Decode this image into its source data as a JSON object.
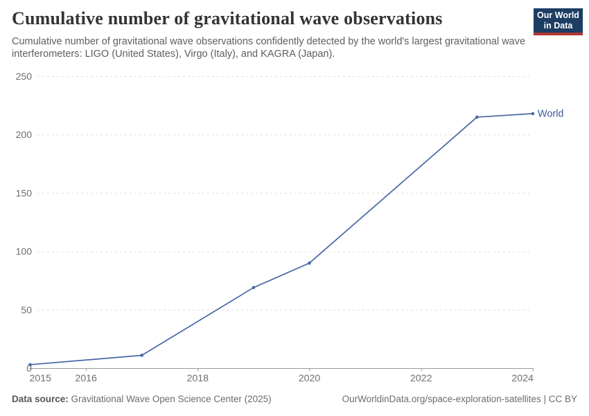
{
  "chart_data": {
    "type": "line",
    "title": "Cumulative number of gravitational wave observations",
    "subtitle": "Cumulative number of gravitational wave observations confidently detected by the world's largest gravitational wave interferometers: LIGO (United States), Virgo (Italy), and KAGRA (Japan).",
    "series": [
      {
        "name": "World",
        "x": [
          2015,
          2017,
          2019,
          2020,
          2023,
          2024
        ],
        "values": [
          3,
          11,
          69,
          90,
          215,
          218
        ]
      }
    ],
    "x_ticks": [
      2015,
      2016,
      2018,
      2020,
      2022,
      2024
    ],
    "x_tick_labels": [
      "2015",
      "2016",
      "2018",
      "2020",
      "2022",
      "2024"
    ],
    "y_ticks": [
      0,
      50,
      100,
      150,
      200,
      250
    ],
    "xlim": [
      2015,
      2024
    ],
    "ylim": [
      0,
      250
    ],
    "grid": "horizontal-dashed",
    "legend_position": "end-of-line-label",
    "end_label": "World",
    "xlabel": "",
    "ylabel": ""
  },
  "theme": {
    "line_color": "#4766a5",
    "marker_color": "#4766a5",
    "end_label_color": "#3d5a9b",
    "axis_label_color": "#6e6e6e",
    "grid_color": "#dedede",
    "axis_color": "#9a9a9a",
    "title_color": "#333333",
    "subtitle_color": "#5e5e5e",
    "footer_color": "#6c6c6c",
    "logo_bg": "#1d3d63",
    "logo_accent": "#b13832"
  },
  "logo": {
    "line1": "Our World",
    "line2": "in Data"
  },
  "footer": {
    "source_label": "Data source:",
    "source_value": " Gravitational Wave Open Science Center (2025)",
    "right_text": "OurWorldinData.org/space-exploration-satellites | CC BY"
  }
}
